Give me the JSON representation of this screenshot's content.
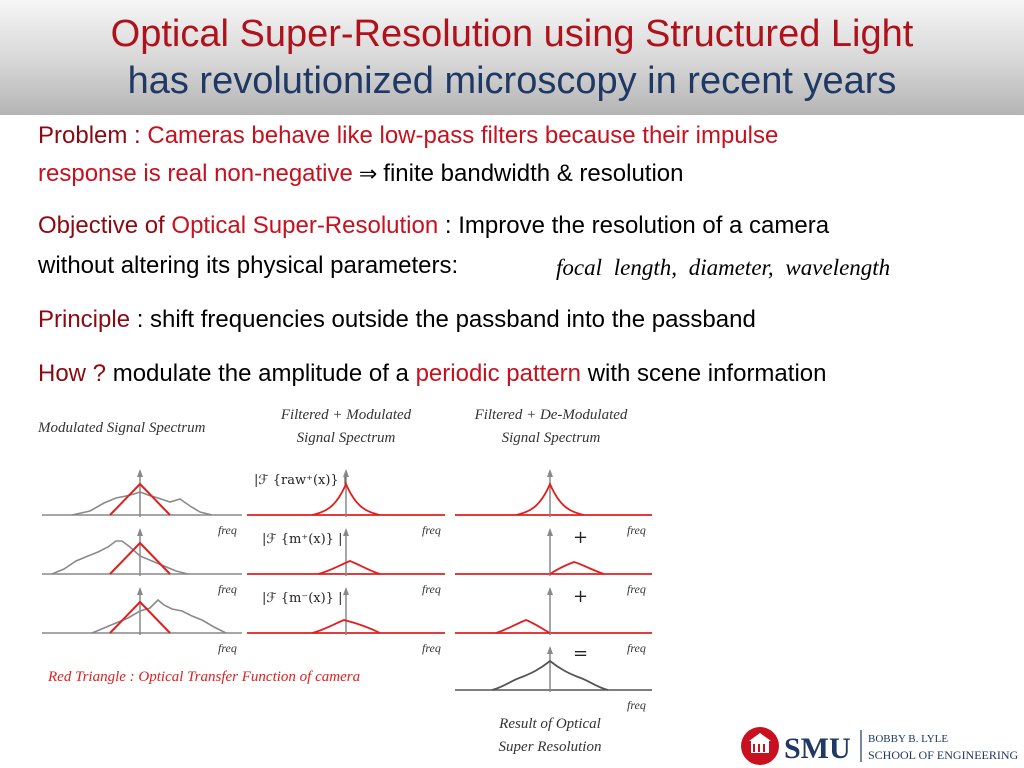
{
  "title": {
    "line1": "Optical Super-Resolution using Structured Light",
    "line2": "has revolutionized microscopy in recent years"
  },
  "problem": {
    "label": "Problem :",
    "text_red_1": "Cameras behave like low-pass filters because their impulse",
    "text_red_2": "response is real non-negative",
    "arrow": "⇒",
    "result": "finite bandwidth & resolution"
  },
  "objective": {
    "label": "Objective of",
    "highlight": "Optical Super-Resolution",
    "text_1": ": Improve the resolution of a camera",
    "text_2": "without altering its physical parameters:",
    "params": "focal length,   diameter,   wavelength"
  },
  "principle": {
    "label": "Principle",
    "text": ": shift frequencies outside the passband into the passband"
  },
  "how": {
    "label": "How ?",
    "text_1": "modulate the amplitude of a",
    "highlight": "periodic pattern",
    "text_2": "with scene information"
  },
  "figure": {
    "col1_title": "Modulated Signal Spectrum",
    "col2_title_1": "Filtered + Modulated",
    "col2_title_2": "Signal Spectrum",
    "col3_title_1": "Filtered + De-Modulated",
    "col3_title_2": "Signal Spectrum",
    "freq_label": "freq",
    "row_label_1": "|ℱ {raw⁺(x)} |",
    "row_label_2": "|ℱ {m⁺(x)} |",
    "row_label_3": "|ℱ {m⁻(x)} |",
    "plus": "+",
    "equals": "=",
    "caption": "Red Triangle : Optical Transfer Function of camera",
    "result_1": "Result of Optical",
    "result_2": "Super Resolution"
  },
  "logo": {
    "smu": "SMU",
    "school_1": "BOBBY B. LYLE",
    "school_2": "SCHOOL OF ENGINEERING"
  },
  "colors": {
    "title_red": "#b0121b",
    "title_blue": "#1f3864",
    "accent_red": "#c8101e",
    "dark_red": "#8b0a12",
    "curve_red": "#e02020",
    "curve_gray": "#8a8a8a"
  }
}
